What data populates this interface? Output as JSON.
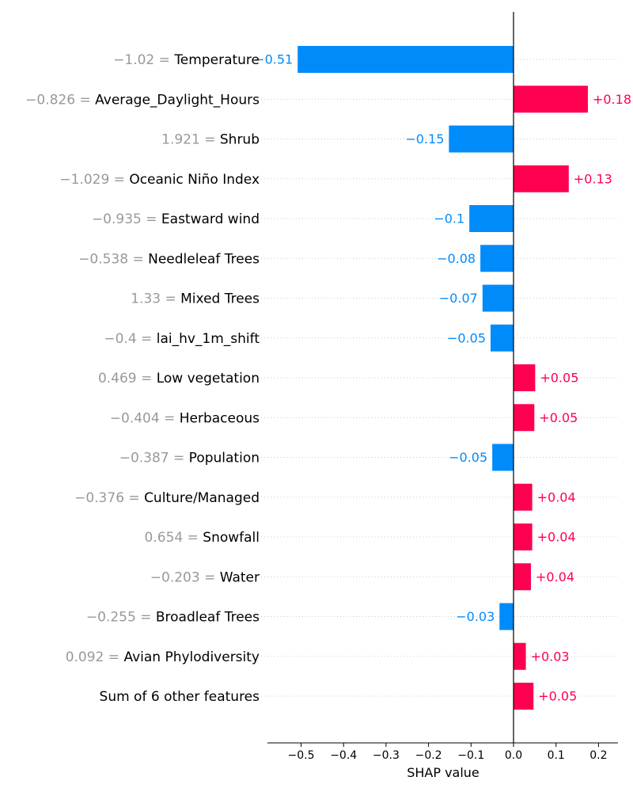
{
  "colors": {
    "positive": "#ff0051",
    "negative": "#008bfb",
    "row_label_value": "#999999",
    "row_label_name": "#000000",
    "grid": "#cccccc"
  },
  "chart_data": {
    "type": "bar",
    "orientation": "horizontal",
    "xlabel": "SHAP value",
    "xlim": [
      -0.58,
      0.245
    ],
    "xticks": [
      "−0.5",
      "−0.4",
      "−0.3",
      "−0.2",
      "−0.1",
      "0.0",
      "0.1",
      "0.2"
    ],
    "xtick_values": [
      -0.5,
      -0.4,
      -0.3,
      -0.2,
      -0.1,
      0.0,
      0.1,
      0.2
    ],
    "grid": "dotted horizontal row guides",
    "rows": [
      {
        "feature_value": "−1.02",
        "feature": "Temperature",
        "shap": -0.508,
        "label": "−0.51"
      },
      {
        "feature_value": "−0.826",
        "feature": "Average_Daylight_Hours",
        "shap": 0.175,
        "label": "+0.18"
      },
      {
        "feature_value": "1.921",
        "feature": "Shrub",
        "shap": -0.152,
        "label": "−0.15"
      },
      {
        "feature_value": "−1.029",
        "feature": "Oceanic Niño Index",
        "shap": 0.13,
        "label": "+0.13"
      },
      {
        "feature_value": "−0.935",
        "feature": "Eastward wind",
        "shap": -0.104,
        "label": "−0.1"
      },
      {
        "feature_value": "−0.538",
        "feature": "Needleleaf Trees",
        "shap": -0.078,
        "label": "−0.08"
      },
      {
        "feature_value": "1.33",
        "feature": "Mixed Trees",
        "shap": -0.073,
        "label": "−0.07"
      },
      {
        "feature_value": "−0.4",
        "feature": "lai_hv_1m_shift",
        "shap": -0.054,
        "label": "−0.05"
      },
      {
        "feature_value": "0.469",
        "feature": "Low vegetation",
        "shap": 0.051,
        "label": "+0.05"
      },
      {
        "feature_value": "−0.404",
        "feature": "Herbaceous",
        "shap": 0.049,
        "label": "+0.05"
      },
      {
        "feature_value": "−0.387",
        "feature": "Population",
        "shap": -0.05,
        "label": "−0.05"
      },
      {
        "feature_value": "−0.376",
        "feature": "Culture/Managed",
        "shap": 0.044,
        "label": "+0.04"
      },
      {
        "feature_value": "0.654",
        "feature": "Snowfall",
        "shap": 0.044,
        "label": "+0.04"
      },
      {
        "feature_value": "−0.203",
        "feature": "Water",
        "shap": 0.041,
        "label": "+0.04"
      },
      {
        "feature_value": "−0.255",
        "feature": "Broadleaf Trees",
        "shap": -0.033,
        "label": "−0.03"
      },
      {
        "feature_value": "0.092",
        "feature": "Avian Phylodiversity",
        "shap": 0.029,
        "label": "+0.03"
      },
      {
        "feature_value": "",
        "feature": "Sum of 6 other features",
        "shap": 0.047,
        "label": "+0.05"
      }
    ]
  }
}
